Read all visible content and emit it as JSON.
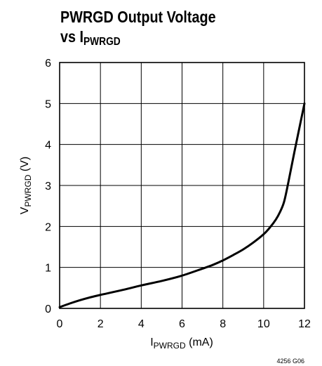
{
  "chart_data": {
    "type": "line",
    "title_line1": "PWRGD Output Voltage",
    "title_line2_prefix": "vs I",
    "title_line2_sub": "PWRGD",
    "xlabel_main": "I",
    "xlabel_sub": "PWRGD",
    "xlabel_unit": " (mA)",
    "ylabel_main": "V",
    "ylabel_sub": "PWRGD",
    "ylabel_unit": " (V)",
    "xlim": [
      0,
      12
    ],
    "ylim": [
      0,
      6
    ],
    "xticks": [
      "0",
      "2",
      "4",
      "6",
      "8",
      "10",
      "12"
    ],
    "yticks": [
      "0",
      "1",
      "2",
      "3",
      "4",
      "5",
      "6"
    ],
    "grid": true,
    "series": [
      {
        "x": [
          0,
          0.5,
          1,
          1.5,
          2,
          3,
          4,
          5,
          6,
          7,
          7.5,
          8,
          8.5,
          9,
          9.5,
          10,
          10.3,
          10.6,
          10.8,
          11,
          11.2,
          11.5,
          12
        ],
        "y": [
          0.03,
          0.12,
          0.2,
          0.27,
          0.33,
          0.44,
          0.56,
          0.67,
          0.8,
          0.97,
          1.06,
          1.17,
          1.3,
          1.44,
          1.61,
          1.81,
          1.97,
          2.17,
          2.35,
          2.6,
          3.05,
          3.8,
          5.0
        ]
      }
    ],
    "footnote": "4256 G06"
  }
}
